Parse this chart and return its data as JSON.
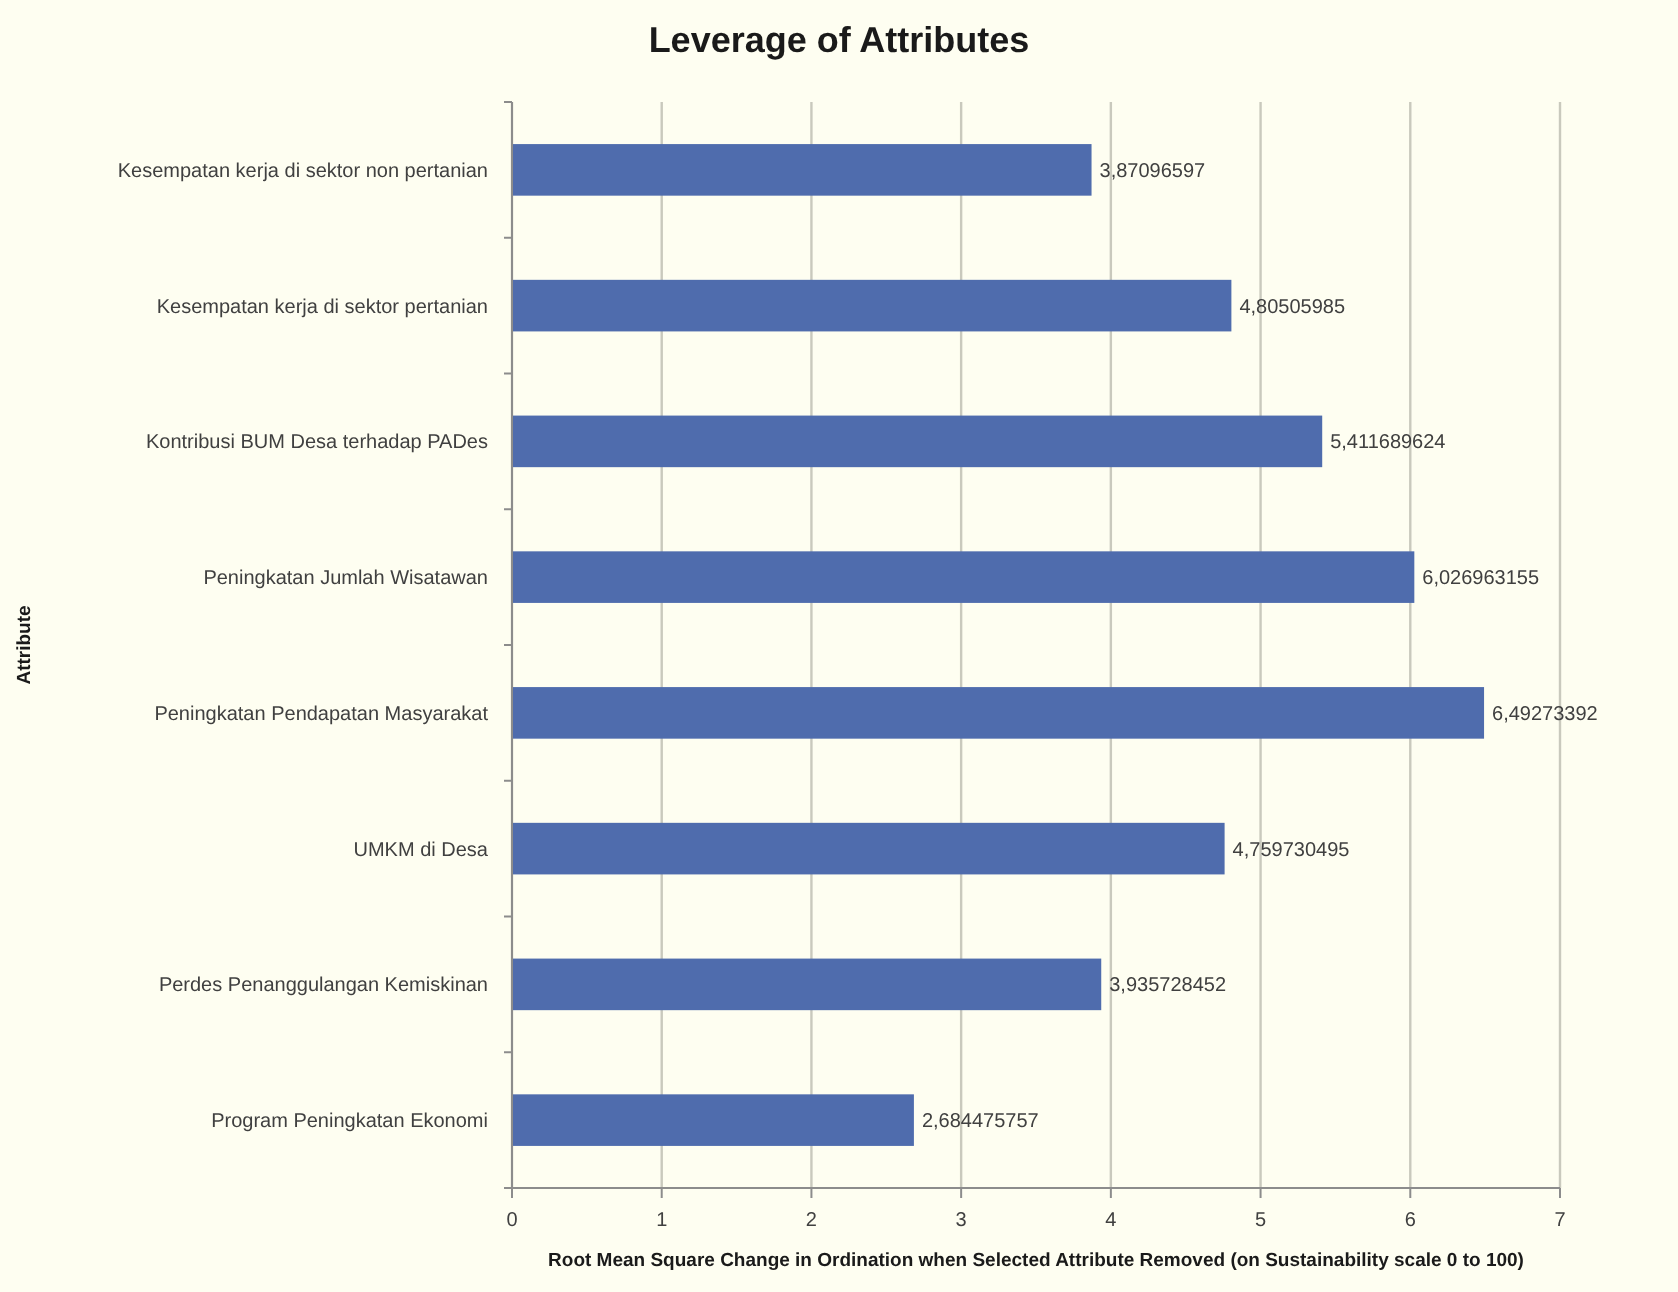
{
  "chart_data": {
    "type": "bar",
    "orientation": "horizontal",
    "title": "Leverage of Attributes",
    "xlabel": "Root Mean Square Change in Ordination when Selected Attribute Removed (on Sustainability scale 0 to 100)",
    "ylabel": "Attribute",
    "categories": [
      "Kesempatan kerja di sektor non pertanian",
      "Kesempatan kerja di sektor pertanian",
      "Kontribusi BUM Desa terhadap PADes",
      "Peningkatan Jumlah Wisatawan",
      "Peningkatan Pendapatan Masyarakat",
      "UMKM di Desa",
      "Perdes Penanggulangan Kemiskinan",
      "Program Peningkatan Ekonomi"
    ],
    "values": [
      3.87096597,
      4.80505985,
      5.411689624,
      6.026963155,
      6.49273392,
      4.759730495,
      3.935728452,
      2.684475757
    ],
    "value_labels": [
      "3,87096597",
      "4,80505985",
      "5,411689624",
      "6,026963155",
      "6,49273392",
      "4,759730495",
      "3,935728452",
      "2,684475757"
    ],
    "color": "#4f6cad",
    "xlim": [
      0,
      7
    ],
    "xticks": [
      0,
      1,
      2,
      3,
      4,
      5,
      6,
      7
    ],
    "grid": "x"
  }
}
